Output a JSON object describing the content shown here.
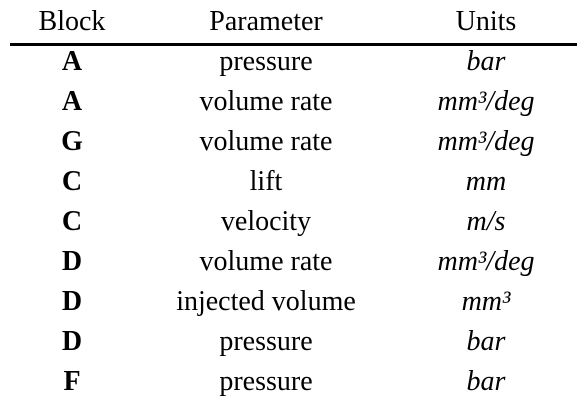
{
  "header": {
    "block": "Block",
    "parameter": "Parameter",
    "units": "Units"
  },
  "rows": [
    {
      "block": "A",
      "parameter": "pressure",
      "units": "bar"
    },
    {
      "block": "A",
      "parameter": "volume rate",
      "units": "mm³/deg"
    },
    {
      "block": "G",
      "parameter": "volume rate",
      "units": "mm³/deg"
    },
    {
      "block": "C",
      "parameter": "lift",
      "units": "mm"
    },
    {
      "block": "C",
      "parameter": "velocity",
      "units": "m/s"
    },
    {
      "block": "D",
      "parameter": "volume rate",
      "units": "mm³/deg"
    },
    {
      "block": "D",
      "parameter": "injected volume",
      "units": "mm³"
    },
    {
      "block": "D",
      "parameter": "pressure",
      "units": "bar"
    },
    {
      "block": "F",
      "parameter": "pressure",
      "units": "bar"
    }
  ]
}
